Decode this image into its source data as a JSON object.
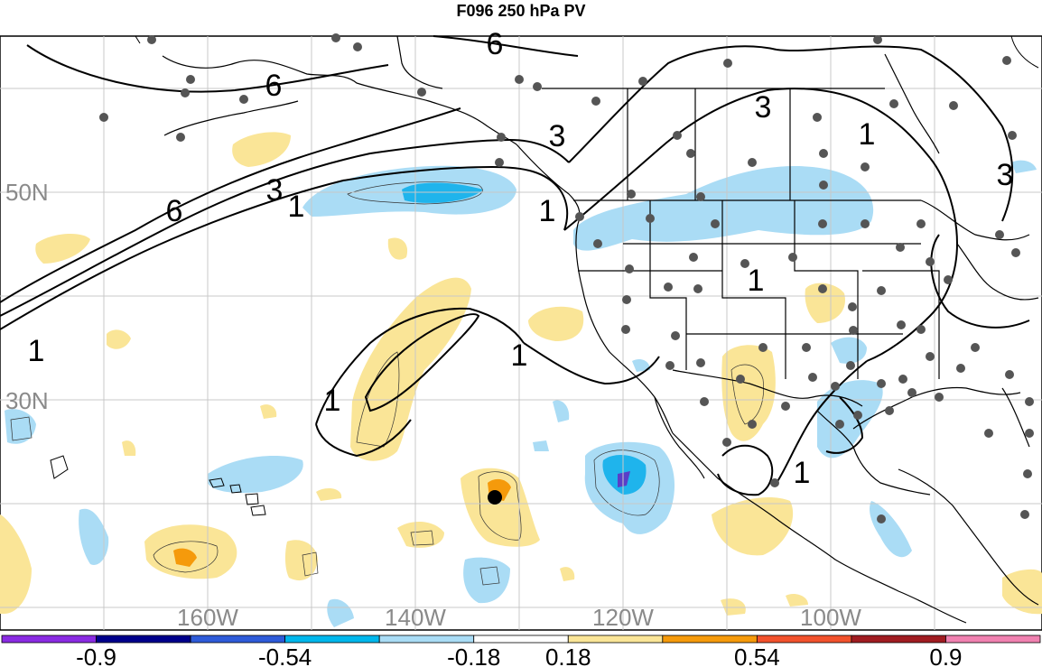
{
  "title": "F096 250 hPa PV",
  "colors": {
    "light_blue": "#aadcf5",
    "mid_blue": "#1fb4ec",
    "dark_blue": "#5a3fc7",
    "light_yellow": "#fae597",
    "orange": "#f59a0b",
    "station": "#555555",
    "grid": "#c8c8c8",
    "land_line": "#000000"
  },
  "latitude_labels": [
    "50N",
    "30N"
  ],
  "longitude_labels": [
    "160W",
    "140W",
    "120W",
    "100W"
  ],
  "contour_labels": [
    "6",
    "6",
    "6",
    "3",
    "3",
    "3",
    "3",
    "1",
    "1",
    "1",
    "1",
    "1",
    "1",
    "1",
    "1"
  ],
  "colorbar": {
    "colors": [
      "#8a2be2",
      "#00008b",
      "#2e5bd9",
      "#00b7ec",
      "#a9dcf5",
      "#ffffff",
      "#fae597",
      "#f59a0b",
      "#f2522c",
      "#a01c21",
      "#f081b0"
    ],
    "tick_labels": [
      "-0.9",
      "-0.54",
      "-0.18",
      "0.18",
      "0.54",
      "0.9"
    ]
  }
}
